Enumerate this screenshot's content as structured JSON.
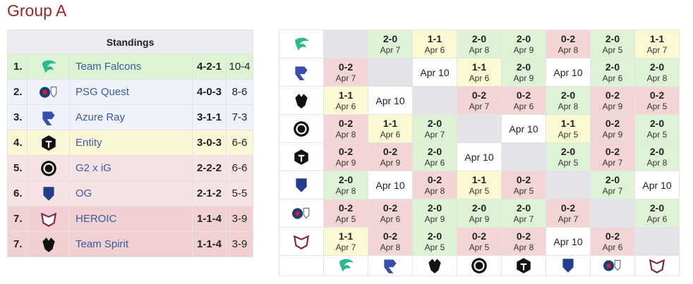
{
  "title": "Group A",
  "standings": {
    "header": "Standings",
    "rows": [
      {
        "rank": "1.",
        "team": "Team Falcons",
        "record": "4-2-1",
        "maps": "10-4"
      },
      {
        "rank": "2.",
        "team": "PSG Quest",
        "record": "4-0-3",
        "maps": "8-6"
      },
      {
        "rank": "3.",
        "team": "Azure Ray",
        "record": "3-1-1",
        "maps": "7-3"
      },
      {
        "rank": "4.",
        "team": "Entity",
        "record": "3-0-3",
        "maps": "6-6"
      },
      {
        "rank": "5.",
        "team": "G2 x iG",
        "record": "2-2-2",
        "maps": "6-6"
      },
      {
        "rank": "6.",
        "team": "OG",
        "record": "2-1-2",
        "maps": "5-5"
      },
      {
        "rank": "7.",
        "team": "HEROIC",
        "record": "1-1-4",
        "maps": "3-9"
      },
      {
        "rank": "7.",
        "team": "Team Spirit",
        "record": "1-1-4",
        "maps": "3-9"
      }
    ]
  },
  "crosstable": {
    "rows": [
      [
        null,
        {
          "score": "2-0",
          "date": "Apr 7"
        },
        {
          "score": "1-1",
          "date": "Apr 6"
        },
        {
          "score": "2-0",
          "date": "Apr 8"
        },
        {
          "score": "2-0",
          "date": "Apr 9"
        },
        {
          "score": "0-2",
          "date": "Apr 8"
        },
        {
          "score": "2-0",
          "date": "Apr 5"
        },
        {
          "score": "1-1",
          "date": "Apr 7"
        }
      ],
      [
        {
          "score": "0-2",
          "date": "Apr 7"
        },
        null,
        {
          "date": "Apr 10"
        },
        {
          "score": "1-1",
          "date": "Apr 6"
        },
        {
          "score": "2-0",
          "date": "Apr 9"
        },
        {
          "date": "Apr 10"
        },
        {
          "score": "2-0",
          "date": "Apr 6"
        },
        {
          "score": "2-0",
          "date": "Apr 8"
        }
      ],
      [
        {
          "score": "1-1",
          "date": "Apr 6"
        },
        {
          "date": "Apr 10"
        },
        null,
        {
          "score": "0-2",
          "date": "Apr 7"
        },
        {
          "score": "0-2",
          "date": "Apr 6"
        },
        {
          "score": "2-0",
          "date": "Apr 8"
        },
        {
          "score": "0-2",
          "date": "Apr 9"
        },
        {
          "score": "0-2",
          "date": "Apr 5"
        }
      ],
      [
        {
          "score": "0-2",
          "date": "Apr 8"
        },
        {
          "score": "1-1",
          "date": "Apr 6"
        },
        {
          "score": "2-0",
          "date": "Apr 7"
        },
        null,
        {
          "date": "Apr 10"
        },
        {
          "score": "1-1",
          "date": "Apr 5"
        },
        {
          "score": "0-2",
          "date": "Apr 9"
        },
        {
          "score": "2-0",
          "date": "Apr 5"
        }
      ],
      [
        {
          "score": "0-2",
          "date": "Apr 9"
        },
        {
          "score": "0-2",
          "date": "Apr 9"
        },
        {
          "score": "2-0",
          "date": "Apr 6"
        },
        {
          "date": "Apr 10"
        },
        null,
        {
          "score": "2-0",
          "date": "Apr 5"
        },
        {
          "score": "0-2",
          "date": "Apr 7"
        },
        {
          "score": "2-0",
          "date": "Apr 8"
        }
      ],
      [
        {
          "score": "2-0",
          "date": "Apr 8"
        },
        {
          "date": "Apr 10"
        },
        {
          "score": "0-2",
          "date": "Apr 8"
        },
        {
          "score": "1-1",
          "date": "Apr 5"
        },
        {
          "score": "0-2",
          "date": "Apr 5"
        },
        null,
        {
          "score": "2-0",
          "date": "Apr 7"
        },
        {
          "date": "Apr 10"
        }
      ],
      [
        {
          "score": "0-2",
          "date": "Apr 5"
        },
        {
          "score": "0-2",
          "date": "Apr 6"
        },
        {
          "score": "2-0",
          "date": "Apr 9"
        },
        {
          "score": "2-0",
          "date": "Apr 9"
        },
        {
          "score": "2-0",
          "date": "Apr 7"
        },
        {
          "score": "0-2",
          "date": "Apr 7"
        },
        null,
        {
          "score": "2-0",
          "date": "Apr 6"
        }
      ],
      [
        {
          "score": "1-1",
          "date": "Apr 7"
        },
        {
          "score": "0-2",
          "date": "Apr 8"
        },
        {
          "score": "2-0",
          "date": "Apr 5"
        },
        {
          "score": "0-2",
          "date": "Apr 5"
        },
        {
          "score": "0-2",
          "date": "Apr 8"
        },
        {
          "date": "Apr 10"
        },
        {
          "score": "0-2",
          "date": "Apr 6"
        },
        null
      ]
    ]
  }
}
